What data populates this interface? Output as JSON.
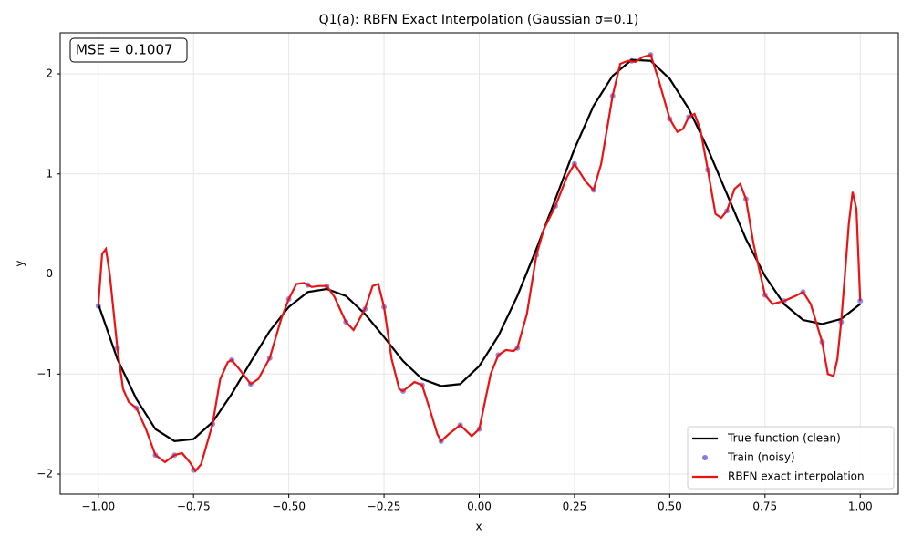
{
  "chart_data": {
    "type": "line",
    "title": "Q1(a): RBFN Exact Interpolation (Gaussian σ=0.1)",
    "xlabel": "x",
    "ylabel": "y",
    "annotation": "MSE = 0.1007",
    "xlim": [
      -1.1,
      1.1
    ],
    "ylim": [
      -2.2,
      2.41
    ],
    "xticks": [
      {
        "value": -1,
        "label": "−1.00"
      },
      {
        "value": -0.75,
        "label": "−0.75"
      },
      {
        "value": -0.5,
        "label": "−0.50"
      },
      {
        "value": -0.25,
        "label": "−0.25"
      },
      {
        "value": 0,
        "label": "0.00"
      },
      {
        "value": 0.25,
        "label": "0.25"
      },
      {
        "value": 0.5,
        "label": "0.50"
      },
      {
        "value": 0.75,
        "label": "0.75"
      },
      {
        "value": 1,
        "label": "1.00"
      }
    ],
    "yticks": [
      {
        "value": -2,
        "label": "−2"
      },
      {
        "value": -1,
        "label": "−1"
      },
      0,
      1,
      2
    ],
    "grid": true,
    "legend": "lower right",
    "series": [
      {
        "name": "True function (clean)",
        "kind": "line",
        "color": "#000000",
        "x": [
          -1,
          -0.95,
          -0.9,
          -0.85,
          -0.8,
          -0.75,
          -0.7,
          -0.65,
          -0.6,
          -0.55,
          -0.5,
          -0.45,
          -0.4,
          -0.35,
          -0.3,
          -0.25,
          -0.2,
          -0.15,
          -0.1,
          -0.05,
          0,
          0.05,
          0.1,
          0.15,
          0.2,
          0.25,
          0.3,
          0.35,
          0.4,
          0.45,
          0.5,
          0.55,
          0.6,
          0.65,
          0.7,
          0.75,
          0.8,
          0.85,
          0.9,
          0.95,
          1
        ],
        "values": [
          -0.3,
          -0.85,
          -1.25,
          -1.55,
          -1.67,
          -1.65,
          -1.48,
          -1.2,
          -0.88,
          -0.57,
          -0.33,
          -0.18,
          -0.15,
          -0.22,
          -0.4,
          -0.63,
          -0.87,
          -1.05,
          -1.12,
          -1.1,
          -0.92,
          -0.62,
          -0.22,
          0.25,
          0.75,
          1.25,
          1.68,
          1.98,
          2.14,
          2.13,
          1.95,
          1.65,
          1.25,
          0.8,
          0.35,
          -0.02,
          -0.3,
          -0.46,
          -0.5,
          -0.45,
          -0.3
        ]
      },
      {
        "name": "Train (noisy)",
        "kind": "scatter",
        "color": "#7b7bf0",
        "x": [
          -1,
          -0.95,
          -0.9,
          -0.85,
          -0.8,
          -0.75,
          -0.7,
          -0.65,
          -0.6,
          -0.55,
          -0.5,
          -0.45,
          -0.4,
          -0.35,
          -0.3,
          -0.25,
          -0.2,
          -0.15,
          -0.1,
          -0.05,
          0,
          0.05,
          0.1,
          0.15,
          0.2,
          0.25,
          0.3,
          0.35,
          0.4,
          0.45,
          0.5,
          0.55,
          0.6,
          0.65,
          0.7,
          0.75,
          0.8,
          0.85,
          0.9,
          0.95,
          1
        ],
        "values": [
          -0.32,
          -0.74,
          -1.34,
          -1.81,
          -1.81,
          -1.96,
          -1.5,
          -0.86,
          -1.1,
          -0.84,
          -0.25,
          -0.11,
          -0.12,
          -0.48,
          -0.35,
          -0.33,
          -1.17,
          -1.11,
          -1.67,
          -1.51,
          -1.55,
          -0.81,
          -0.74,
          0.19,
          0.68,
          1.1,
          0.84,
          1.78,
          2.13,
          2.19,
          1.55,
          1.57,
          1.04,
          0.63,
          0.75,
          -0.21,
          -0.27,
          -0.18,
          -0.68,
          -0.48,
          -0.27
        ]
      },
      {
        "name": "RBFN exact interpolation",
        "kind": "line",
        "color": "#ee1111",
        "x": [
          -1,
          -0.99,
          -0.98,
          -0.97,
          -0.95,
          -0.935,
          -0.92,
          -0.9,
          -0.875,
          -0.85,
          -0.825,
          -0.8,
          -0.78,
          -0.76,
          -0.745,
          -0.73,
          -0.7,
          -0.68,
          -0.66,
          -0.65,
          -0.63,
          -0.6,
          -0.58,
          -0.55,
          -0.52,
          -0.5,
          -0.48,
          -0.46,
          -0.44,
          -0.42,
          -0.4,
          -0.38,
          -0.35,
          -0.33,
          -0.3,
          -0.28,
          -0.265,
          -0.25,
          -0.23,
          -0.21,
          -0.2,
          -0.17,
          -0.15,
          -0.13,
          -0.11,
          -0.1,
          -0.08,
          -0.05,
          -0.02,
          0,
          0.03,
          0.05,
          0.07,
          0.09,
          0.1,
          0.125,
          0.15,
          0.17,
          0.2,
          0.23,
          0.25,
          0.28,
          0.3,
          0.32,
          0.35,
          0.37,
          0.39,
          0.41,
          0.43,
          0.45,
          0.47,
          0.5,
          0.52,
          0.535,
          0.55,
          0.565,
          0.58,
          0.6,
          0.62,
          0.635,
          0.65,
          0.67,
          0.685,
          0.7,
          0.72,
          0.75,
          0.77,
          0.8,
          0.83,
          0.85,
          0.87,
          0.9,
          0.915,
          0.93,
          0.94,
          0.95,
          0.96,
          0.97,
          0.98,
          0.99,
          1
        ],
        "values": [
          -0.32,
          0.2,
          0.25,
          0,
          -0.74,
          -1.15,
          -1.28,
          -1.34,
          -1.55,
          -1.81,
          -1.88,
          -1.81,
          -1.79,
          -1.88,
          -1.97,
          -1.9,
          -1.5,
          -1.05,
          -0.88,
          -0.86,
          -0.95,
          -1.1,
          -1.05,
          -0.84,
          -0.45,
          -0.25,
          -0.1,
          -0.09,
          -0.13,
          -0.12,
          -0.12,
          -0.23,
          -0.48,
          -0.56,
          -0.35,
          -0.12,
          -0.1,
          -0.33,
          -0.85,
          -1.15,
          -1.17,
          -1.08,
          -1.11,
          -1.35,
          -1.6,
          -1.67,
          -1.6,
          -1.51,
          -1.62,
          -1.55,
          -1,
          -0.81,
          -0.76,
          -0.77,
          -0.74,
          -0.4,
          0.19,
          0.45,
          0.68,
          0.97,
          1.1,
          0.92,
          0.84,
          1.1,
          1.78,
          2.1,
          2.13,
          2.12,
          2.17,
          2.19,
          1.95,
          1.55,
          1.42,
          1.45,
          1.57,
          1.6,
          1.45,
          1.04,
          0.6,
          0.56,
          0.63,
          0.85,
          0.9,
          0.75,
          0.3,
          -0.21,
          -0.3,
          -0.27,
          -0.22,
          -0.18,
          -0.3,
          -0.68,
          -1,
          -1.02,
          -0.85,
          -0.48,
          0,
          0.5,
          0.82,
          0.65,
          -0.27
        ]
      }
    ]
  }
}
